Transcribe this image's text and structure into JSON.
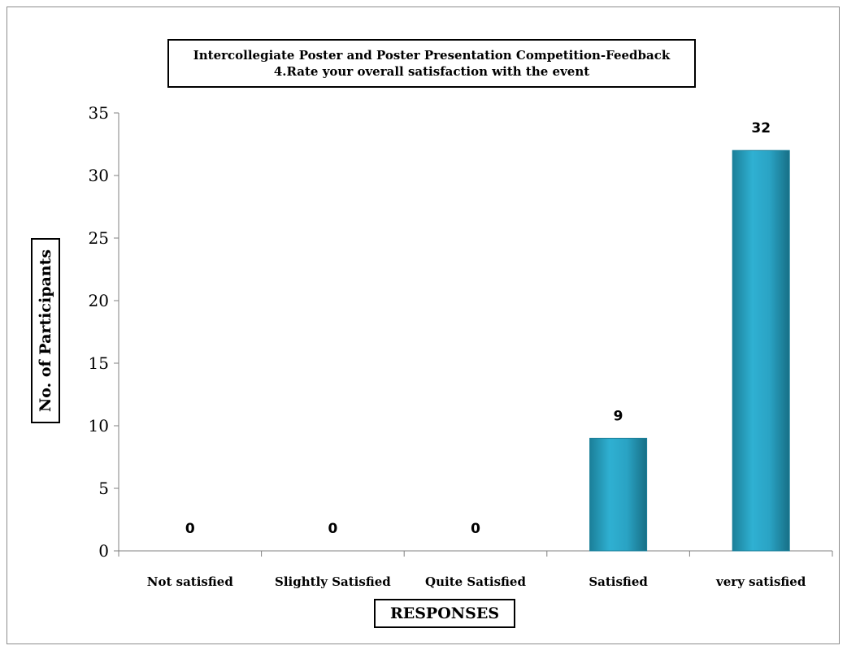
{
  "chart_data": {
    "type": "bar",
    "title_lines": [
      "Intercollegiate Poster and Poster Presentation Competition-Feedback",
      "4.Rate your overall satisfaction with the event"
    ],
    "xlabel": "RESPONSES",
    "ylabel": "No. of Participants",
    "categories": [
      "Not satisfied",
      "Slightly Satisfied",
      "Quite Satisfied",
      "Satisfied",
      "very satisfied"
    ],
    "values": [
      0,
      0,
      0,
      9,
      32
    ],
    "data_labels": [
      "0",
      "0",
      "0",
      "9",
      "32"
    ],
    "ylim": [
      0,
      35
    ],
    "yticks": [
      0,
      5,
      10,
      15,
      20,
      25,
      30,
      35
    ],
    "grid": false,
    "legend": "none",
    "bar_color": "#2aa3c4",
    "bar_color_dark": "#1b7f99"
  }
}
